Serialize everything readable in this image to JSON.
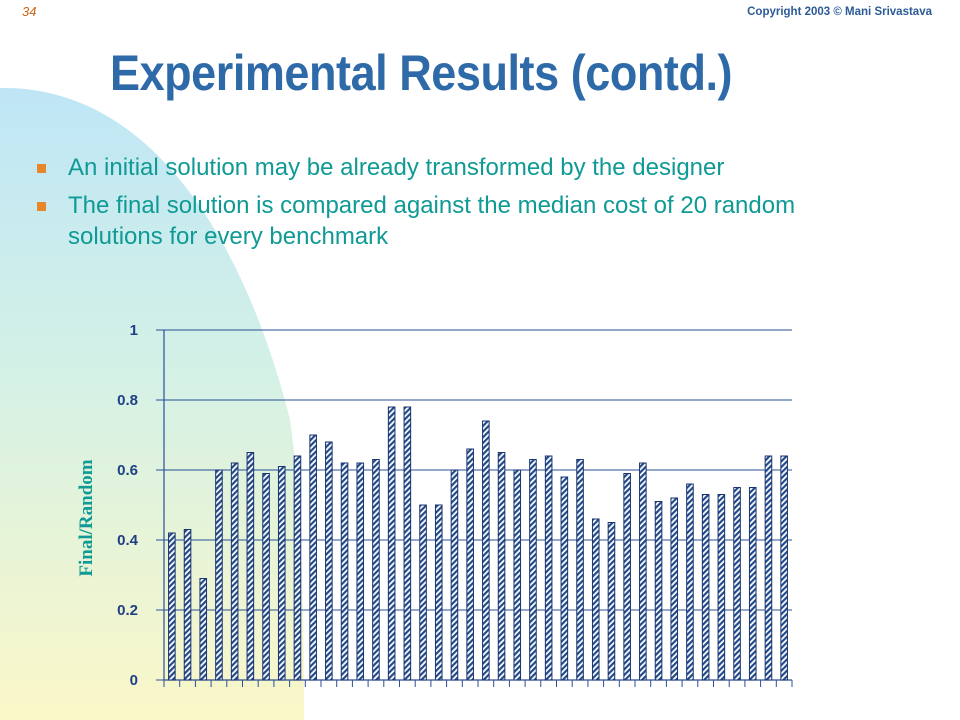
{
  "header": {
    "slide_number": "34",
    "copyright": "Copyright 2003 © Mani Srivastava"
  },
  "title": "Experimental Results (contd.)",
  "bullets": [
    {
      "text": "An initial solution may be already transformed by the designer"
    },
    {
      "text": "The final solution is compared against the median cost  of 20 random solutions for every benchmark"
    }
  ],
  "colors": {
    "title": "#2f6aa8",
    "bullet_text": "#0f9a96",
    "bullet_marker": "#e8862a",
    "bar_fill": "#234a8a",
    "axis_label": "#1f3f86"
  },
  "chart_data": {
    "type": "bar",
    "title": "",
    "xlabel": "",
    "ylabel": "Final/Random",
    "ylim": [
      0,
      1
    ],
    "yticks": [
      0,
      0.2,
      0.4,
      0.6,
      0.8,
      1
    ],
    "ytick_labels": [
      "0",
      "0.2",
      "0.4",
      "0.6",
      "0.8",
      "1"
    ],
    "grid": true,
    "legend": "none",
    "bar_pattern": "diagonal-hatch",
    "values": [
      0.42,
      0.43,
      0.29,
      0.6,
      0.62,
      0.65,
      0.59,
      0.61,
      0.64,
      0.7,
      0.68,
      0.62,
      0.62,
      0.63,
      0.78,
      0.78,
      0.5,
      0.5,
      0.6,
      0.66,
      0.74,
      0.65,
      0.6,
      0.63,
      0.64,
      0.58,
      0.63,
      0.46,
      0.45,
      0.59,
      0.62,
      0.51,
      0.52,
      0.56,
      0.53,
      0.53,
      0.55,
      0.55,
      0.64,
      0.64
    ]
  }
}
